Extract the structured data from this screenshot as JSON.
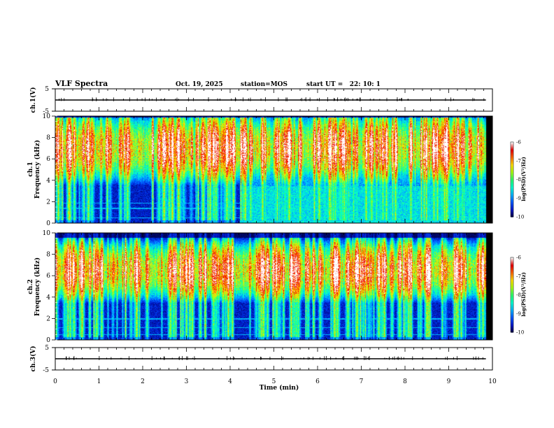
{
  "header": {
    "title": "VLF Spectra",
    "date": "Oct. 19, 2025",
    "station": "station=MOS",
    "start_ut": "start UT =   22: 10: 1"
  },
  "colors": {
    "colormap": [
      "#00003a",
      "#0018c8",
      "#0058ff",
      "#00b4ff",
      "#00ffd2",
      "#2cff70",
      "#a8ff16",
      "#ffe000",
      "#ff6a00",
      "#e80000",
      "#ffffff"
    ],
    "trace": "#000000",
    "background": "#000000"
  },
  "chart_data": [
    {
      "type": "line",
      "panel": "ch1-waveform",
      "ylabel": "ch.1(V)",
      "ylim": [
        -5,
        5
      ],
      "yticks": [
        "5",
        "-5"
      ],
      "xlim": [
        0,
        10
      ],
      "x_unit": "min",
      "baseline_value": 0,
      "description_values": {
        "x_end_min": 9.85
      }
    },
    {
      "type": "heatmap",
      "panel": "ch1-spectrogram",
      "ylabel_line1": "ch.1",
      "ylabel_line2": "Frequency (kHz)",
      "ylim": [
        0,
        10
      ],
      "yticks": [
        "0",
        "2",
        "4",
        "6",
        "8",
        "10"
      ],
      "xlim": [
        0,
        10
      ],
      "x_data_end_min": 9.85,
      "colorbar": {
        "label": "log(PSD)(V²/Hz)",
        "range": [
          -10,
          -6
        ],
        "ticks": [
          "-6",
          "-7",
          "-8",
          "-9",
          "-10"
        ]
      },
      "features": {
        "band_center_khz": 7.0,
        "band_low_khz": 3.0,
        "band_high_khz": 9.9,
        "noise_floor_after_min": 4.2,
        "lines_khz": [
          0.5,
          1.4,
          1.9
        ]
      }
    },
    {
      "type": "heatmap",
      "panel": "ch2-spectrogram",
      "ylabel_line1": "ch.2",
      "ylabel_line2": "Frequency (kHz)",
      "ylim": [
        0,
        10
      ],
      "yticks": [
        "0",
        "2",
        "4",
        "6",
        "8",
        "10"
      ],
      "xlim": [
        0,
        10
      ],
      "x_data_end_min": 9.85,
      "colorbar": {
        "label": "log(PSD)(V²/Hz)",
        "range": [
          -10,
          -6
        ],
        "ticks": [
          "-6",
          "-7",
          "-8",
          "-9",
          "-10"
        ]
      },
      "features": {
        "band_center_khz": 6.5,
        "band_low_khz": 3.5,
        "band_high_khz": 9.6,
        "lines_khz": [
          0.5,
          1.2,
          2.0
        ]
      }
    },
    {
      "type": "line",
      "panel": "ch3-waveform",
      "ylabel": "ch.3(V)",
      "ylim": [
        -5,
        5
      ],
      "yticks": [
        "5",
        "-5"
      ],
      "xlim": [
        0,
        10
      ],
      "x_unit": "min",
      "baseline_value": 0
    }
  ],
  "x_axis": {
    "label": "Time (min)",
    "ticks": [
      "0",
      "1",
      "2",
      "3",
      "4",
      "5",
      "6",
      "7",
      "8",
      "9",
      "10"
    ]
  }
}
